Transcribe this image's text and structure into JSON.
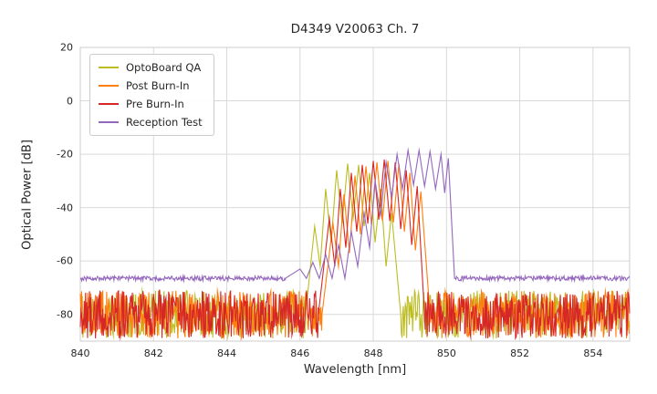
{
  "chart_data": {
    "type": "line",
    "title": "D4349 V20063 Ch. 7",
    "xlabel": "Wavelength [nm]",
    "ylabel": "Optical Power [dB]",
    "xlim": [
      840,
      855
    ],
    "ylim": [
      -90,
      20
    ],
    "xticks": [
      840,
      842,
      844,
      846,
      848,
      850,
      852,
      854
    ],
    "yticks": [
      20,
      0,
      -20,
      -40,
      -60,
      -80
    ],
    "grid": true,
    "legend_position": "upper left",
    "series": [
      {
        "name": "OptoBoard QA",
        "color": "#bcbd22",
        "noise_floor_db": -80,
        "noise_spread_db": 9,
        "signal_range_nm": [
          846.15,
          848.75
        ],
        "peaks": [
          {
            "x": 846.4,
            "y": -47
          },
          {
            "x": 846.7,
            "y": -33
          },
          {
            "x": 847.0,
            "y": -26
          },
          {
            "x": 847.3,
            "y": -23.5
          },
          {
            "x": 847.6,
            "y": -24
          },
          {
            "x": 847.9,
            "y": -27
          },
          {
            "x": 848.2,
            "y": -33
          },
          {
            "x": 848.5,
            "y": -42
          }
        ],
        "valley_offset_db": 20,
        "valley_floor_db": -62
      },
      {
        "name": "Post Burn-In",
        "color": "#ff7f0e",
        "noise_floor_db": -80,
        "noise_spread_db": 9,
        "signal_range_nm": [
          846.6,
          849.55
        ],
        "peaks": [
          {
            "x": 846.9,
            "y": -46
          },
          {
            "x": 847.2,
            "y": -35
          },
          {
            "x": 847.5,
            "y": -28
          },
          {
            "x": 847.8,
            "y": -24.5
          },
          {
            "x": 848.1,
            "y": -23
          },
          {
            "x": 848.4,
            "y": -22.5
          },
          {
            "x": 848.7,
            "y": -23.5
          },
          {
            "x": 849.0,
            "y": -27
          },
          {
            "x": 849.3,
            "y": -34
          }
        ],
        "valley_offset_db": 22,
        "valley_floor_db": -62
      },
      {
        "name": "Pre Burn-In",
        "color": "#d62728",
        "noise_floor_db": -80,
        "noise_spread_db": 9,
        "signal_range_nm": [
          846.5,
          849.4
        ],
        "peaks": [
          {
            "x": 846.8,
            "y": -44
          },
          {
            "x": 847.1,
            "y": -33
          },
          {
            "x": 847.4,
            "y": -27
          },
          {
            "x": 847.7,
            "y": -24
          },
          {
            "x": 848.0,
            "y": -22.5
          },
          {
            "x": 848.3,
            "y": -22
          },
          {
            "x": 848.6,
            "y": -23
          },
          {
            "x": 848.9,
            "y": -26
          },
          {
            "x": 849.2,
            "y": -32
          }
        ],
        "valley_offset_db": 22,
        "valley_floor_db": -62
      },
      {
        "name": "Reception Test",
        "color": "#9467bd",
        "noise_floor_db": -66.5,
        "noise_spread_db": 0.9,
        "signal_range_nm": [
          845.6,
          850.22
        ],
        "peaks": [
          {
            "x": 846.0,
            "y": -63
          },
          {
            "x": 846.35,
            "y": -60.5
          },
          {
            "x": 846.7,
            "y": -57.5
          },
          {
            "x": 847.05,
            "y": -54
          },
          {
            "x": 847.4,
            "y": -49
          },
          {
            "x": 847.75,
            "y": -42
          },
          {
            "x": 848.05,
            "y": -30
          },
          {
            "x": 848.35,
            "y": -23
          },
          {
            "x": 848.65,
            "y": -20
          },
          {
            "x": 848.95,
            "y": -18.5
          },
          {
            "x": 849.25,
            "y": -18.5
          },
          {
            "x": 849.55,
            "y": -19
          },
          {
            "x": 849.85,
            "y": -20
          },
          {
            "x": 850.05,
            "y": -21.5
          }
        ],
        "valley_offset_db": 13,
        "valley_floor_db": -66.5
      }
    ],
    "grid_color": "#d9d9d9",
    "border_color": "#cccccc"
  }
}
